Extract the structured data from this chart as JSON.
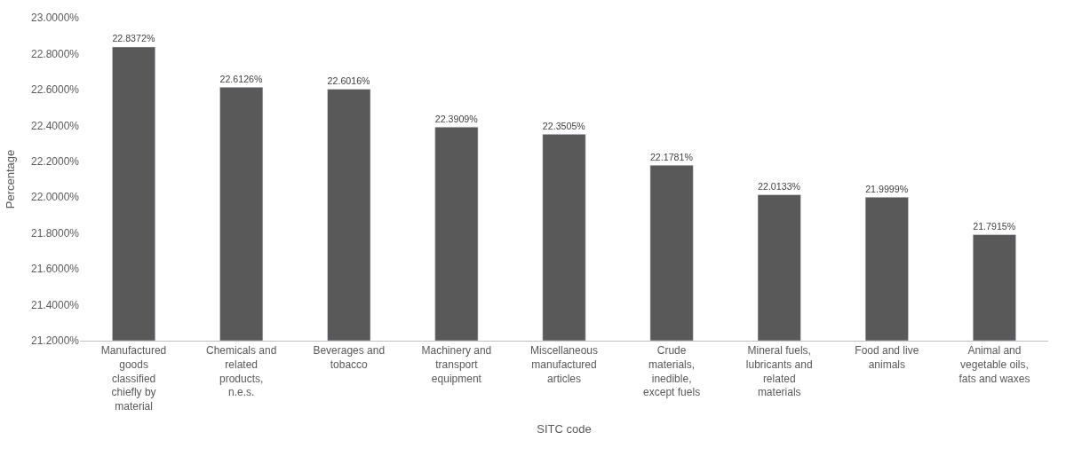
{
  "chart_data": {
    "type": "bar",
    "xlabel": "SITC code",
    "ylabel": "Percentage",
    "categories": [
      "Manufactured goods classified chiefly by material",
      "Chemicals and related products, n.e.s.",
      "Beverages and tobacco",
      "Machinery and transport equipment",
      "Miscellaneous manufactured articles",
      "Crude materials, inedible, except fuels",
      "Mineral fuels, lubricants and related materials",
      "Food and live animals",
      "Animal and vegetable oils, fats and waxes"
    ],
    "values": [
      22.8372,
      22.6126,
      22.6016,
      22.3909,
      22.3505,
      22.1781,
      22.0133,
      21.9999,
      21.7915
    ],
    "value_labels": [
      "22.8372%",
      "22.6126%",
      "22.6016%",
      "22.3909%",
      "22.3505%",
      "22.1781%",
      "22.0133%",
      "21.9999%",
      "21.7915%"
    ],
    "color": "#595959",
    "ylim": [
      21.2,
      23.0
    ],
    "yticks": [
      {
        "value": 21.2,
        "label": "21.2000%"
      },
      {
        "value": 21.4,
        "label": "21.4000%"
      },
      {
        "value": 21.6,
        "label": "21.6000%"
      },
      {
        "value": 21.8,
        "label": "21.8000%"
      },
      {
        "value": 22.0,
        "label": "22.0000%"
      },
      {
        "value": 22.2,
        "label": "22.2000%"
      },
      {
        "value": 22.4,
        "label": "22.4000%"
      },
      {
        "value": 22.6,
        "label": "22.6000%"
      },
      {
        "value": 22.8,
        "label": "22.8000%"
      },
      {
        "value": 23.0,
        "label": "23.0000%"
      }
    ],
    "grid": false,
    "legend": false
  }
}
